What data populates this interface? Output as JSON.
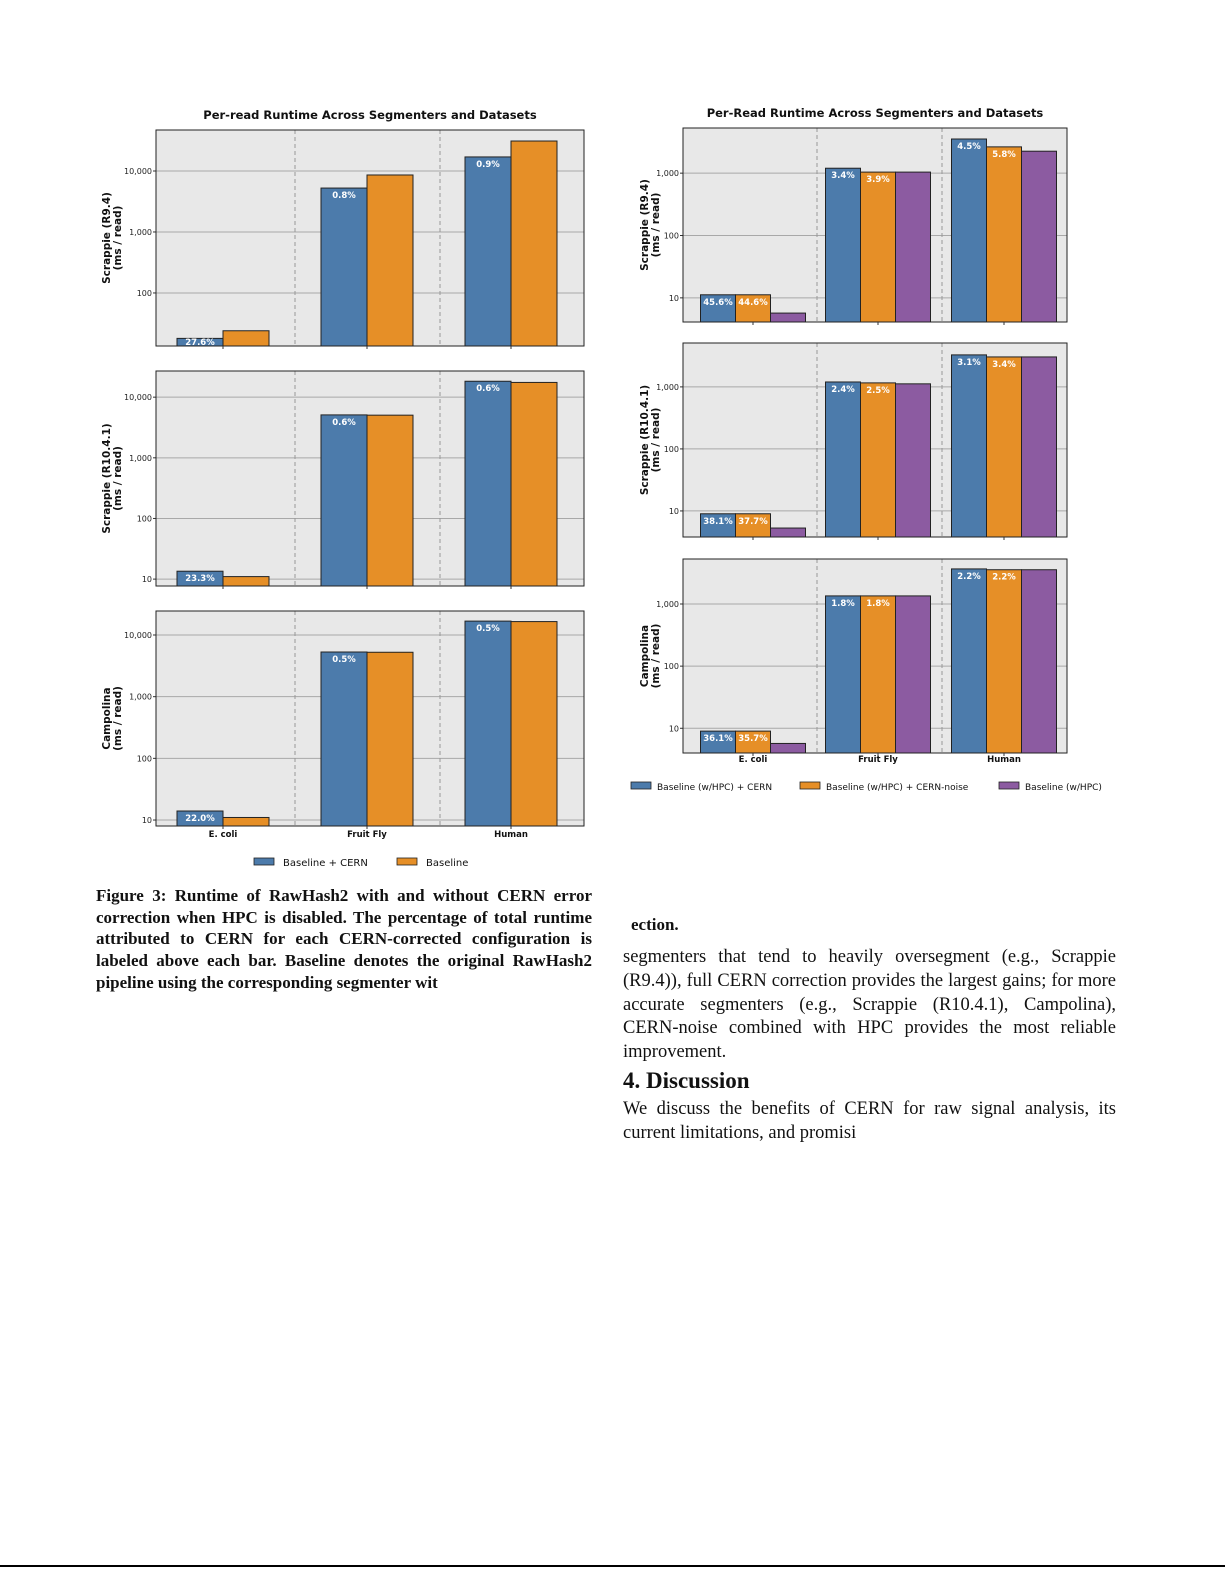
{
  "chart_data": [
    {
      "type": "bar",
      "title": "Per-read Runtime Across Segmenters and Datasets",
      "categories": [
        "E. coli",
        "Fruit Fly",
        "Human"
      ],
      "yscale": "log",
      "grid": true,
      "legend_position": "bottom",
      "series_names": [
        "Baseline + CERN",
        "Baseline"
      ],
      "colors": [
        "#4c7bab",
        "#e68f27"
      ],
      "panels": [
        {
          "ylabel": [
            "Scrappie (R9.4)",
            "(ms / read)"
          ],
          "ylim": [
            13.5,
            47000
          ],
          "ticks": [
            {
              "value": 100,
              "label": "100"
            },
            {
              "value": 1000,
              "label": "1,000"
            },
            {
              "value": 10000,
              "label": "10,000"
            }
          ],
          "series": [
            {
              "values": [
                18,
                5250,
                17000
              ],
              "labels": [
                "27.6%",
                "0.8%",
                "0.9%"
              ]
            },
            {
              "values": [
                24,
                8600,
                31000
              ],
              "labels": [
                null,
                null,
                null
              ]
            }
          ]
        },
        {
          "ylabel": [
            "Scrappie (R10.4.1)",
            "(ms / read)"
          ],
          "ylim": [
            7.7,
            27000
          ],
          "ticks": [
            {
              "value": 10,
              "label": "10"
            },
            {
              "value": 100,
              "label": "100"
            },
            {
              "value": 1000,
              "label": "1,000"
            },
            {
              "value": 10000,
              "label": "10,000"
            }
          ],
          "series": [
            {
              "values": [
                13.5,
                5100,
                18300
              ],
              "labels": [
                "23.3%",
                "0.6%",
                "0.6%"
              ]
            },
            {
              "values": [
                11,
                5050,
                17500
              ],
              "labels": [
                null,
                null,
                null
              ]
            }
          ]
        },
        {
          "ylabel": [
            "Campolina",
            "(ms / read)"
          ],
          "ylim": [
            8,
            24500
          ],
          "ticks": [
            {
              "value": 10,
              "label": "10"
            },
            {
              "value": 100,
              "label": "100"
            },
            {
              "value": 1000,
              "label": "1,000"
            },
            {
              "value": 10000,
              "label": "10,000"
            }
          ],
          "series": [
            {
              "values": [
                14,
                5300,
                16800
              ],
              "labels": [
                "22.0%",
                "0.5%",
                "0.5%"
              ]
            },
            {
              "values": [
                11,
                5250,
                16500
              ],
              "labels": [
                null,
                null,
                null
              ]
            }
          ]
        }
      ]
    },
    {
      "type": "bar",
      "title": "Per-Read Runtime Across Segmenters and Datasets",
      "categories": [
        "E. coli",
        "Fruit Fly",
        "Human"
      ],
      "yscale": "log",
      "grid": true,
      "legend_position": "bottom",
      "series_names": [
        "Baseline (w/HPC) + CERN",
        "Baseline (w/HPC) + CERN-noise",
        "Baseline (w/HPC)"
      ],
      "colors": [
        "#4c7bab",
        "#e68f27",
        "#8c5ba1"
      ],
      "panels": [
        {
          "ylabel": [
            "Scrappie (R9.4)",
            "(ms / read)"
          ],
          "ylim": [
            4.1,
            5300
          ],
          "ticks": [
            {
              "value": 10,
              "label": "10"
            },
            {
              "value": 100,
              "label": "100"
            },
            {
              "value": 1000,
              "label": "1,000"
            }
          ],
          "series": [
            {
              "values": [
                11.2,
                1200,
                3530
              ],
              "labels": [
                "45.6%",
                "3.4%",
                "4.5%"
              ]
            },
            {
              "values": [
                11.2,
                1040,
                2640
              ],
              "labels": [
                "44.6%",
                "3.9%",
                "5.8%"
              ]
            },
            {
              "values": [
                5.7,
                1040,
                2250
              ],
              "labels": [
                null,
                null,
                null
              ]
            }
          ]
        },
        {
          "ylabel": [
            "Scrappie (R10.4.1)",
            "(ms / read)"
          ],
          "ylim": [
            3.8,
            5100
          ],
          "ticks": [
            {
              "value": 10,
              "label": "10"
            },
            {
              "value": 100,
              "label": "100"
            },
            {
              "value": 1000,
              "label": "1,000"
            }
          ],
          "series": [
            {
              "values": [
                9,
                1200,
                3280
              ],
              "labels": [
                "38.1%",
                "2.4%",
                "3.1%"
              ]
            },
            {
              "values": [
                9,
                1160,
                3040
              ],
              "labels": [
                "37.7%",
                "2.5%",
                "3.4%"
              ]
            },
            {
              "values": [
                5.3,
                1120,
                3040
              ],
              "labels": [
                null,
                null,
                null
              ]
            }
          ]
        },
        {
          "ylabel": [
            "Campolina",
            "(ms / read)"
          ],
          "ylim": [
            4,
            5300
          ],
          "ticks": [
            {
              "value": 10,
              "label": "10"
            },
            {
              "value": 100,
              "label": "100"
            },
            {
              "value": 1000,
              "label": "1,000"
            }
          ],
          "series": [
            {
              "values": [
                9,
                1350,
                3670
              ],
              "labels": [
                "36.1%",
                "1.8%",
                "2.2%"
              ]
            },
            {
              "values": [
                9,
                1350,
                3560
              ],
              "labels": [
                "35.7%",
                "1.8%",
                "2.2%"
              ]
            },
            {
              "values": [
                5.7,
                1350,
                3560
              ],
              "labels": [
                null,
                null,
                null
              ]
            }
          ]
        }
      ]
    }
  ],
  "caption": "Figure 3: Runtime of RawHash2 with and without CERN error correction when HPC is disabled. The percentage of total runtime attributed to CERN for each CERN-corrected configuration is labeled above each bar. Baseline denotes the original RawHash2 pipeline using the corresponding segmenter wit",
  "right_fragment": "ection.",
  "paragraph1": "segmenters that tend to heavily oversegment (e.g., Scrappie (R9.4)), full CERN correction provides the largest gains; for more accurate segmenters (e.g., Scrappie (R10.4.1), Campolina), CERN-noise combined with HPC provides the most reliable improvement.",
  "section_heading": "4. Discussion",
  "paragraph2": "We discuss the benefits of CERN for raw signal analysis, its current limitations, and promisi"
}
